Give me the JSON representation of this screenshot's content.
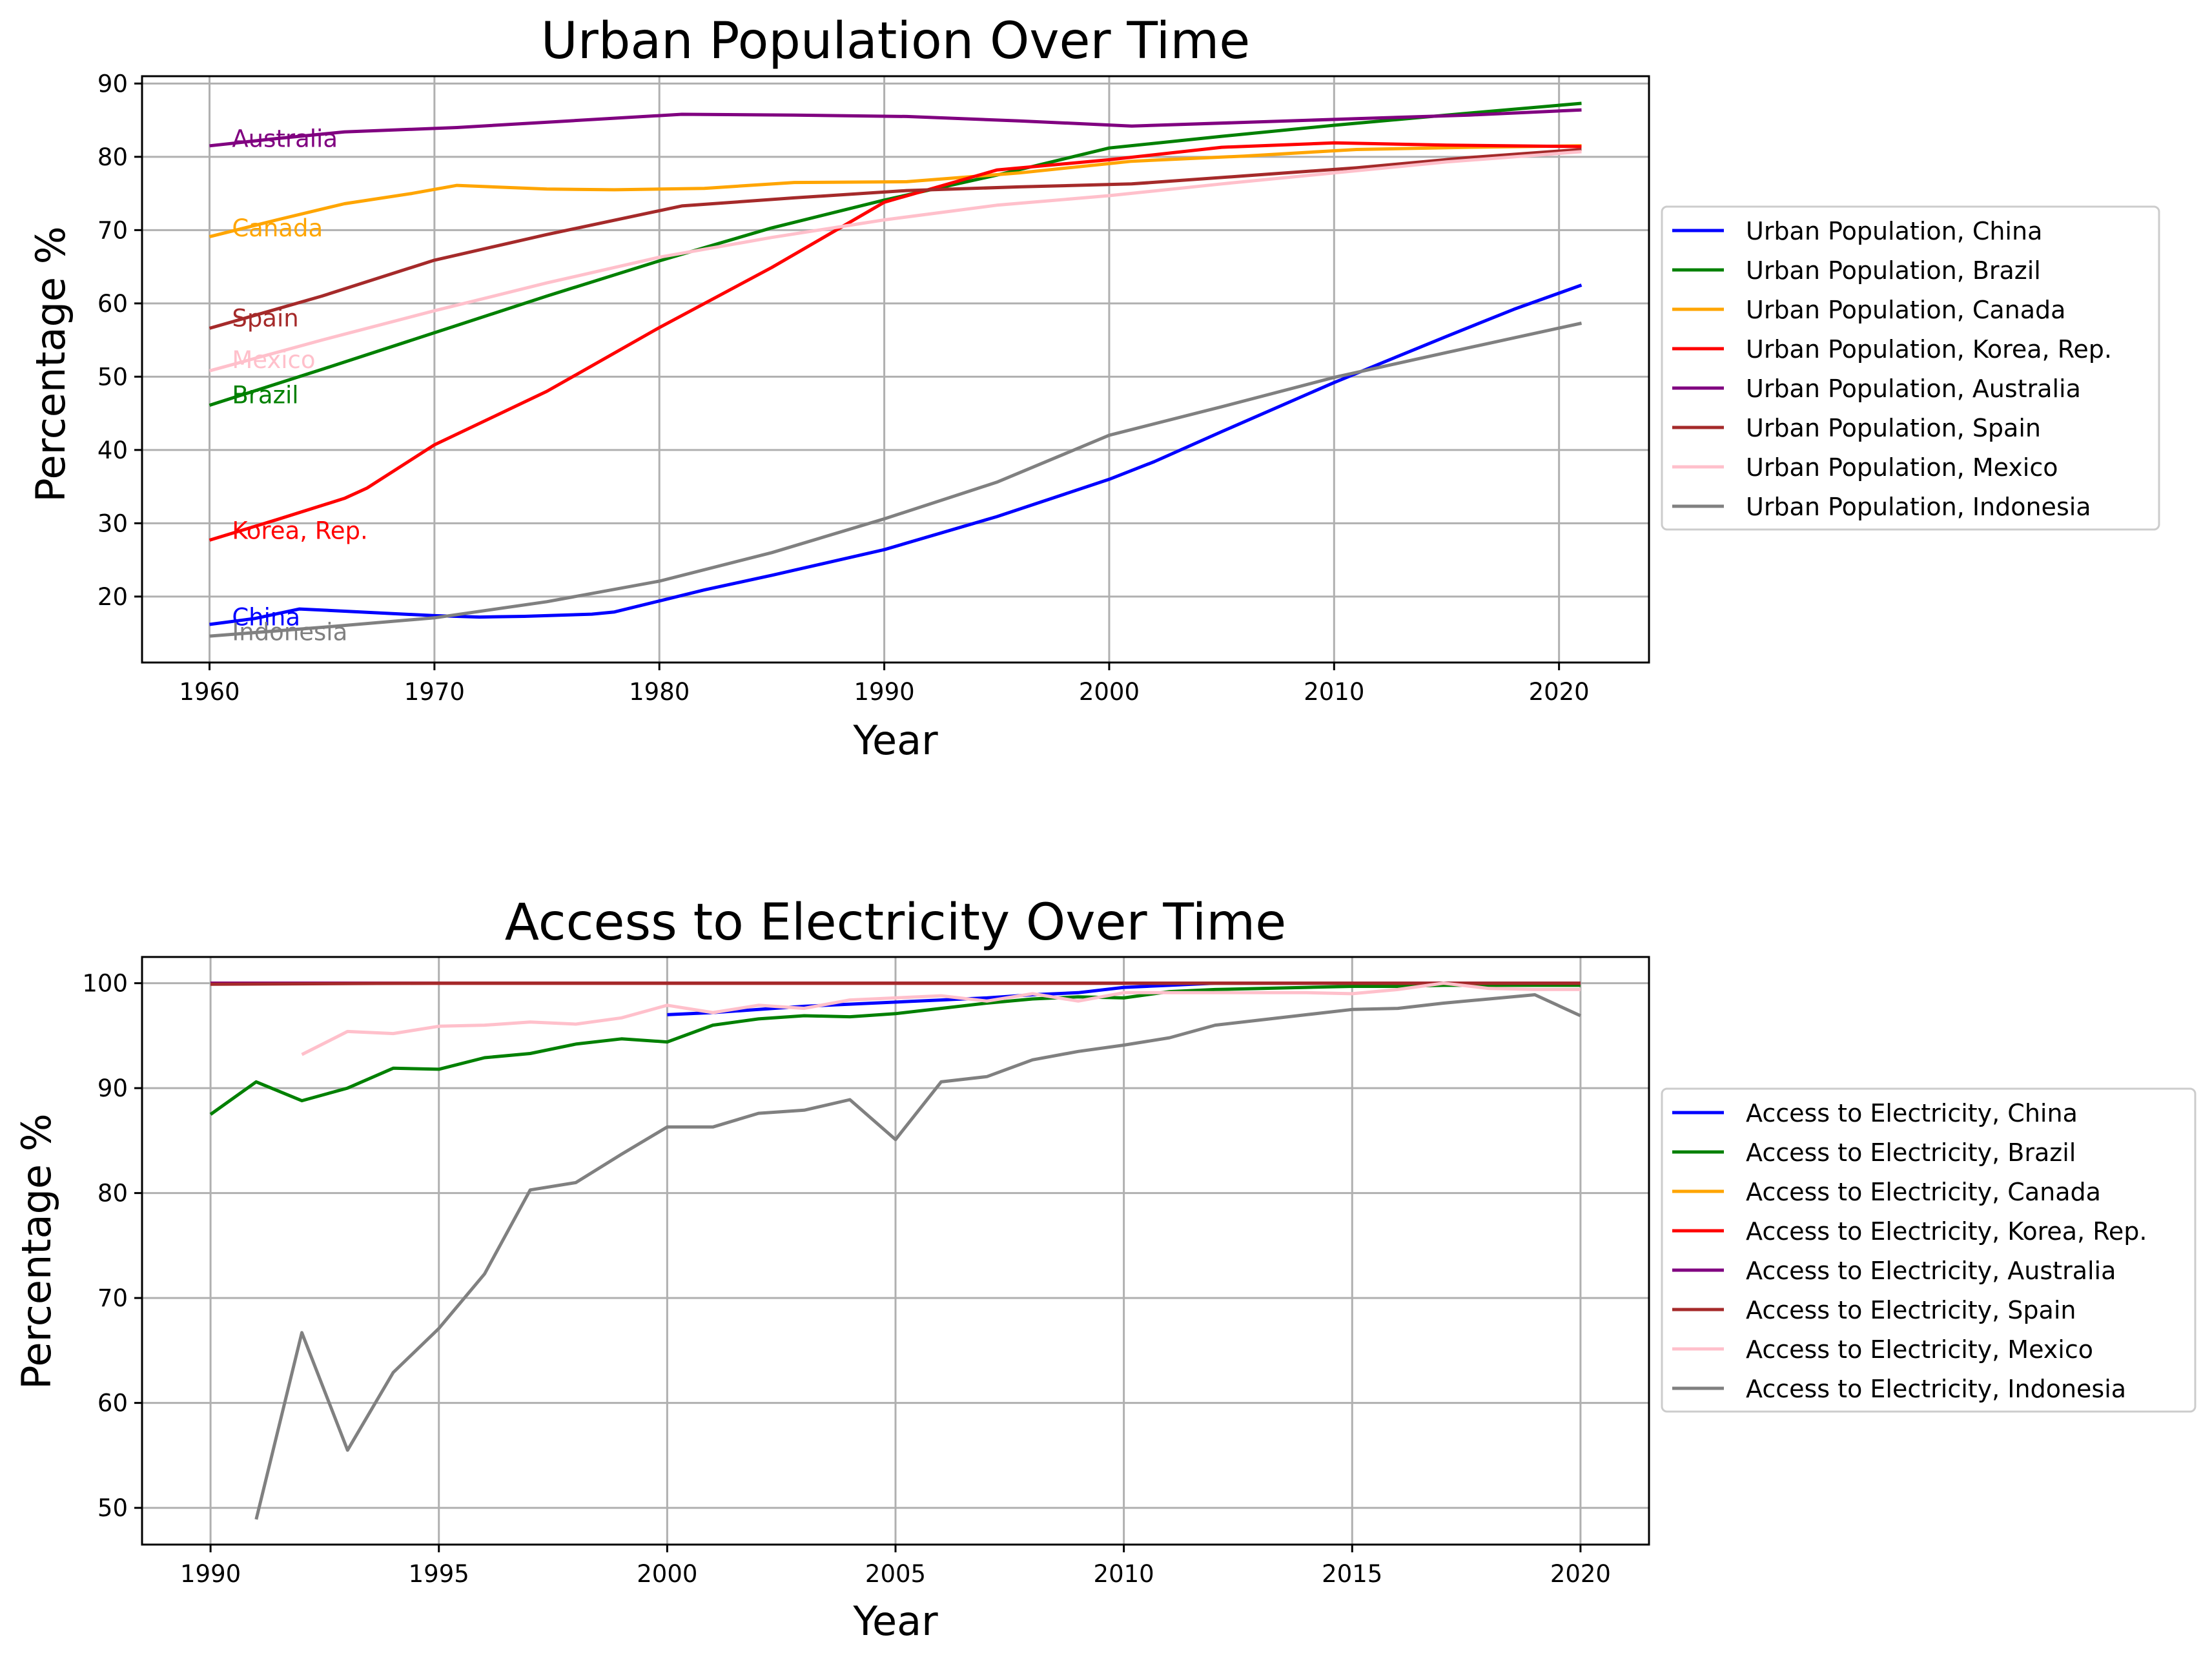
{
  "colors": {
    "China": "#0000ff",
    "Brazil": "#008000",
    "Canada": "#ffa500",
    "Korea, Rep.": "#ff0000",
    "Australia": "#800080",
    "Spain": "#a52a2a",
    "Mexico": "#ffc0cb",
    "Indonesia": "#808080"
  },
  "chart_data": [
    {
      "type": "line",
      "title": "Urban Population Over Time",
      "xlabel": "Year",
      "ylabel": "Percentage %",
      "xlim": [
        1957,
        2024
      ],
      "ylim": [
        11,
        91
      ],
      "xticks": [
        1960,
        1970,
        1980,
        1990,
        2000,
        2010,
        2020
      ],
      "yticks": [
        20,
        30,
        40,
        50,
        60,
        70,
        80,
        90
      ],
      "grid": true,
      "legend_position": "right, outside",
      "annotations": [
        {
          "text": "Australia",
          "series": "Australia",
          "x": 1961,
          "y": 82.5
        },
        {
          "text": "Canada",
          "series": "Canada",
          "x": 1961,
          "y": 70.3
        },
        {
          "text": "Spain",
          "series": "Spain",
          "x": 1961,
          "y": 58.0
        },
        {
          "text": "Mexico",
          "series": "Mexico",
          "x": 1961,
          "y": 52.3
        },
        {
          "text": "Brazil",
          "series": "Brazil",
          "x": 1961,
          "y": 47.5
        },
        {
          "text": "Korea, Rep.",
          "series": "Korea, Rep.",
          "x": 1961,
          "y": 29.0
        },
        {
          "text": "China",
          "series": "China",
          "x": 1961,
          "y": 17.2
        },
        {
          "text": "Indonesia",
          "series": "Indonesia",
          "x": 1961,
          "y": 15.2
        }
      ],
      "series": [
        {
          "name": "Urban Population, China",
          "color_key": "China",
          "x": [
            1960,
            1962,
            1964,
            1966,
            1968,
            1970,
            1972,
            1974,
            1976,
            1977,
            1978,
            1980,
            1982,
            1985,
            1990,
            1995,
            2000,
            2002,
            2005,
            2010,
            2015,
            2018,
            2021
          ],
          "y": [
            16.2,
            17.0,
            18.3,
            18.0,
            17.7,
            17.4,
            17.2,
            17.3,
            17.5,
            17.6,
            17.9,
            19.4,
            20.9,
            22.9,
            26.4,
            30.9,
            36.0,
            38.4,
            42.5,
            49.2,
            55.5,
            59.2,
            62.5
          ]
        },
        {
          "name": "Urban Population, Brazil",
          "color_key": "Brazil",
          "x": [
            1960,
            1965,
            1970,
            1975,
            1980,
            1985,
            1990,
            1995,
            2000,
            2005,
            2010,
            2015,
            2021
          ],
          "y": [
            46.1,
            51.0,
            56.0,
            61.0,
            65.8,
            70.3,
            74.1,
            77.5,
            81.2,
            82.8,
            84.3,
            85.7,
            87.3
          ]
        },
        {
          "name": "Urban Population, Canada",
          "color_key": "Canada",
          "x": [
            1960,
            1963,
            1966,
            1969,
            1971,
            1975,
            1978,
            1982,
            1986,
            1991,
            1996,
            2001,
            2006,
            2011,
            2016,
            2021
          ],
          "y": [
            69.1,
            71.4,
            73.6,
            75.0,
            76.1,
            75.6,
            75.5,
            75.7,
            76.5,
            76.6,
            77.8,
            79.4,
            80.1,
            81.0,
            81.3,
            81.5
          ]
        },
        {
          "name": "Urban Population, Korea, Rep.",
          "color_key": "Korea, Rep.",
          "x": [
            1960,
            1963,
            1966,
            1967,
            1970,
            1975,
            1980,
            1985,
            1990,
            1995,
            2000,
            2005,
            2010,
            2015,
            2021
          ],
          "y": [
            27.7,
            30.5,
            33.4,
            34.8,
            40.7,
            48.0,
            56.7,
            64.9,
            73.8,
            78.2,
            79.6,
            81.3,
            81.9,
            81.6,
            81.4
          ]
        },
        {
          "name": "Urban Population, Australia",
          "color_key": "Australia",
          "x": [
            1960,
            1963,
            1966,
            1971,
            1976,
            1981,
            1986,
            1991,
            1996,
            2001,
            2006,
            2011,
            2016,
            2021
          ],
          "y": [
            81.5,
            82.5,
            83.4,
            84.0,
            84.9,
            85.8,
            85.7,
            85.5,
            84.9,
            84.2,
            84.7,
            85.2,
            85.7,
            86.4
          ]
        },
        {
          "name": "Urban Population, Spain",
          "color_key": "Spain",
          "x": [
            1960,
            1965,
            1970,
            1975,
            1981,
            1986,
            1991,
            1996,
            2001,
            2006,
            2011,
            2016,
            2021
          ],
          "y": [
            56.6,
            61.0,
            65.9,
            69.4,
            73.3,
            74.4,
            75.4,
            75.9,
            76.3,
            77.4,
            78.5,
            79.9,
            81.0
          ]
        },
        {
          "name": "Urban Population, Mexico",
          "color_key": "Mexico",
          "x": [
            1960,
            1965,
            1970,
            1975,
            1980,
            1985,
            1990,
            1995,
            2000,
            2005,
            2010,
            2015,
            2021
          ],
          "y": [
            50.8,
            55.0,
            59.0,
            62.8,
            66.3,
            69.0,
            71.4,
            73.4,
            74.7,
            76.3,
            77.8,
            79.3,
            80.7
          ]
        },
        {
          "name": "Urban Population, Indonesia",
          "color_key": "Indonesia",
          "x": [
            1960,
            1965,
            1970,
            1975,
            1980,
            1985,
            1990,
            1995,
            2000,
            2005,
            2010,
            2015,
            2021
          ],
          "y": [
            14.6,
            15.8,
            17.1,
            19.3,
            22.1,
            26.0,
            30.6,
            35.6,
            42.0,
            45.9,
            49.9,
            53.3,
            57.3
          ]
        }
      ]
    },
    {
      "type": "line",
      "title": "Access to Electricity Over Time",
      "xlabel": "Year",
      "ylabel": "Percentage %",
      "xlim": [
        1988.5,
        2021.5
      ],
      "ylim": [
        46.5,
        102.5
      ],
      "xticks": [
        1990,
        1995,
        2000,
        2005,
        2010,
        2015,
        2020
      ],
      "yticks": [
        50,
        60,
        70,
        80,
        90,
        100
      ],
      "grid": true,
      "legend_position": "right, outside",
      "series": [
        {
          "name": "Access to Electricity, China",
          "color_key": "China",
          "x": [
            2000,
            2001,
            2002,
            2003,
            2004,
            2005,
            2006,
            2007,
            2008,
            2009,
            2010,
            2011,
            2012,
            2013,
            2014,
            2015,
            2016,
            2017,
            2018,
            2019,
            2020
          ],
          "y": [
            97.0,
            97.2,
            97.5,
            97.8,
            98.0,
            98.2,
            98.4,
            98.6,
            98.9,
            99.1,
            99.6,
            99.8,
            100,
            100,
            100,
            100,
            100,
            100,
            100,
            100,
            100
          ]
        },
        {
          "name": "Access to Electricity, Brazil",
          "color_key": "Brazil",
          "x": [
            1990,
            1991,
            1992,
            1993,
            1994,
            1995,
            1996,
            1997,
            1998,
            1999,
            2000,
            2001,
            2002,
            2003,
            2004,
            2005,
            2006,
            2007,
            2008,
            2009,
            2010,
            2011,
            2012,
            2013,
            2014,
            2015,
            2016,
            2017,
            2018,
            2019,
            2020
          ],
          "y": [
            87.5,
            90.6,
            88.8,
            90.0,
            91.9,
            91.8,
            92.9,
            93.3,
            94.2,
            94.7,
            94.4,
            96.0,
            96.6,
            96.9,
            96.8,
            97.1,
            97.6,
            98.1,
            98.5,
            98.7,
            98.6,
            99.2,
            99.4,
            99.5,
            99.6,
            99.7,
            99.7,
            99.8,
            99.8,
            99.8,
            99.8
          ]
        },
        {
          "name": "Access to Electricity, Canada",
          "color_key": "Canada",
          "x": [
            1990,
            1995,
            2000,
            2005,
            2010,
            2015,
            2020
          ],
          "y": [
            100,
            100,
            100,
            100,
            100,
            100,
            100
          ]
        },
        {
          "name": "Access to Electricity, Korea, Rep.",
          "color_key": "Korea, Rep.",
          "x": [
            1990,
            1995,
            2000,
            2005,
            2010,
            2015,
            2020
          ],
          "y": [
            100,
            100,
            100,
            100,
            100,
            100,
            100
          ]
        },
        {
          "name": "Access to Electricity, Australia",
          "color_key": "Australia",
          "x": [
            1990,
            1995,
            2000,
            2005,
            2010,
            2015,
            2020
          ],
          "y": [
            100,
            100,
            100,
            100,
            100,
            100,
            100
          ]
        },
        {
          "name": "Access to Electricity, Spain",
          "color_key": "Spain",
          "x": [
            1990,
            1995,
            2000,
            2005,
            2010,
            2015,
            2020
          ],
          "y": [
            99.9,
            100,
            100,
            100,
            100,
            100,
            100
          ]
        },
        {
          "name": "Access to Electricity, Mexico",
          "color_key": "Mexico",
          "x": [
            1992,
            1993,
            1994,
            1995,
            1996,
            1997,
            1998,
            1999,
            2000,
            2001,
            2002,
            2003,
            2004,
            2005,
            2006,
            2007,
            2008,
            2009,
            2010,
            2011,
            2012,
            2013,
            2014,
            2015,
            2016,
            2017,
            2018,
            2019,
            2020
          ],
          "y": [
            93.2,
            95.4,
            95.2,
            95.9,
            96.0,
            96.3,
            96.1,
            96.7,
            97.9,
            97.2,
            97.9,
            97.6,
            98.4,
            98.6,
            98.8,
            98.3,
            99.0,
            98.3,
            99.1,
            99.1,
            99.1,
            99.1,
            99.1,
            99.0,
            99.4,
            100,
            99.5,
            99.4,
            99.4
          ]
        },
        {
          "name": "Access to Electricity, Indonesia",
          "color_key": "Indonesia",
          "x": [
            1991,
            1992,
            1993,
            1994,
            1995,
            1996,
            1997,
            1998,
            1999,
            2000,
            2001,
            2002,
            2003,
            2004,
            2005,
            2006,
            2007,
            2008,
            2009,
            2010,
            2011,
            2012,
            2013,
            2014,
            2015,
            2016,
            2017,
            2018,
            2019,
            2020
          ],
          "y": [
            48.9,
            66.7,
            55.5,
            62.9,
            67.1,
            72.3,
            80.3,
            81.0,
            83.7,
            86.3,
            86.3,
            87.6,
            87.9,
            88.9,
            85.1,
            90.6,
            91.1,
            92.7,
            93.5,
            94.1,
            94.8,
            96.0,
            96.5,
            97.0,
            97.5,
            97.6,
            98.1,
            98.5,
            98.9,
            96.9
          ]
        }
      ]
    }
  ]
}
